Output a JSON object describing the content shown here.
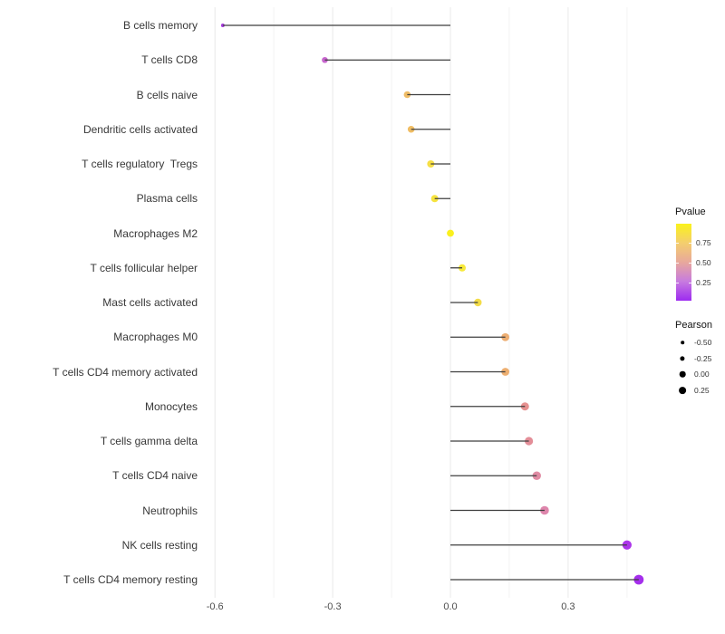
{
  "chart_data": {
    "type": "lollipop",
    "orientation": "horizontal",
    "title": "",
    "xlabel": "",
    "ylabel": "",
    "grid": "on",
    "xlim": [
      -0.652,
      0.497
    ],
    "x_ticks": [
      {
        "value": -0.6,
        "label": "-0.6"
      },
      {
        "value": -0.3,
        "label": "-0.3"
      },
      {
        "value": 0.0,
        "label": "0.0"
      },
      {
        "value": 0.3,
        "label": "0.3"
      }
    ],
    "x_minor_ticks": [
      -0.45,
      -0.15,
      0.15,
      0.45
    ],
    "stem_color": "#3f3f3f",
    "points": [
      {
        "label": "B cells memory",
        "pearson": -0.58,
        "color": "#A83AE0",
        "radius": 2.0
      },
      {
        "label": "T cells CD8",
        "pearson": -0.32,
        "color": "#C765CE",
        "radius": 3.3
      },
      {
        "label": "B cells naive",
        "pearson": -0.11,
        "color": "#EFBC66",
        "radius": 3.8
      },
      {
        "label": "Dendritic cells activated",
        "pearson": -0.1,
        "color": "#F0BD63",
        "radius": 3.8
      },
      {
        "label": "T cells regulatory  Tregs",
        "pearson": -0.05,
        "color": "#F6DF46",
        "radius": 4.0
      },
      {
        "label": "Plasma cells",
        "pearson": -0.04,
        "color": "#F6E33E",
        "radius": 4.0
      },
      {
        "label": "Macrophages M2",
        "pearson": 0.0,
        "color": "#FAF01E",
        "radius": 3.9
      },
      {
        "label": "T cells follicular helper",
        "pearson": 0.03,
        "color": "#F7E93A",
        "radius": 4.0
      },
      {
        "label": "Mast cells activated",
        "pearson": 0.07,
        "color": "#F3DC48",
        "radius": 4.2
      },
      {
        "label": "Macrophages M0",
        "pearson": 0.14,
        "color": "#EDAE72",
        "radius": 4.4
      },
      {
        "label": "T cells CD4 memory activated",
        "pearson": 0.14,
        "color": "#EDAF71",
        "radius": 4.4
      },
      {
        "label": "Monocytes",
        "pearson": 0.19,
        "color": "#E69190",
        "radius": 4.5
      },
      {
        "label": "T cells gamma delta",
        "pearson": 0.2,
        "color": "#E38E98",
        "radius": 4.6
      },
      {
        "label": "T cells CD4 naive",
        "pearson": 0.22,
        "color": "#E08BA3",
        "radius": 4.7
      },
      {
        "label": "Neutrophils",
        "pearson": 0.24,
        "color": "#DE86AC",
        "radius": 4.8
      },
      {
        "label": "NK cells resting",
        "pearson": 0.45,
        "color": "#AC35EA",
        "radius": 5.1
      },
      {
        "label": "T cells CD4 memory resting",
        "pearson": 0.48,
        "color": "#A52FEC",
        "radius": 5.4
      }
    ],
    "legends": {
      "pvalue": {
        "title": "Pvalue",
        "tick_labels": [
          "0.75",
          "0.50",
          "0.25"
        ],
        "gradient_stops": [
          "#FAF21B",
          "#F4CE6E",
          "#E8A89C",
          "#C77BDF",
          "#9D2BF0"
        ]
      },
      "pearson": {
        "title": "Pearson",
        "dot_color": "#000000",
        "items": [
          {
            "label": "-0.50",
            "radius": 1.8
          },
          {
            "label": "-0.25",
            "radius": 2.6
          },
          {
            "label": "0.00",
            "radius": 3.3
          },
          {
            "label": "0.25",
            "radius": 3.9
          }
        ]
      }
    }
  }
}
